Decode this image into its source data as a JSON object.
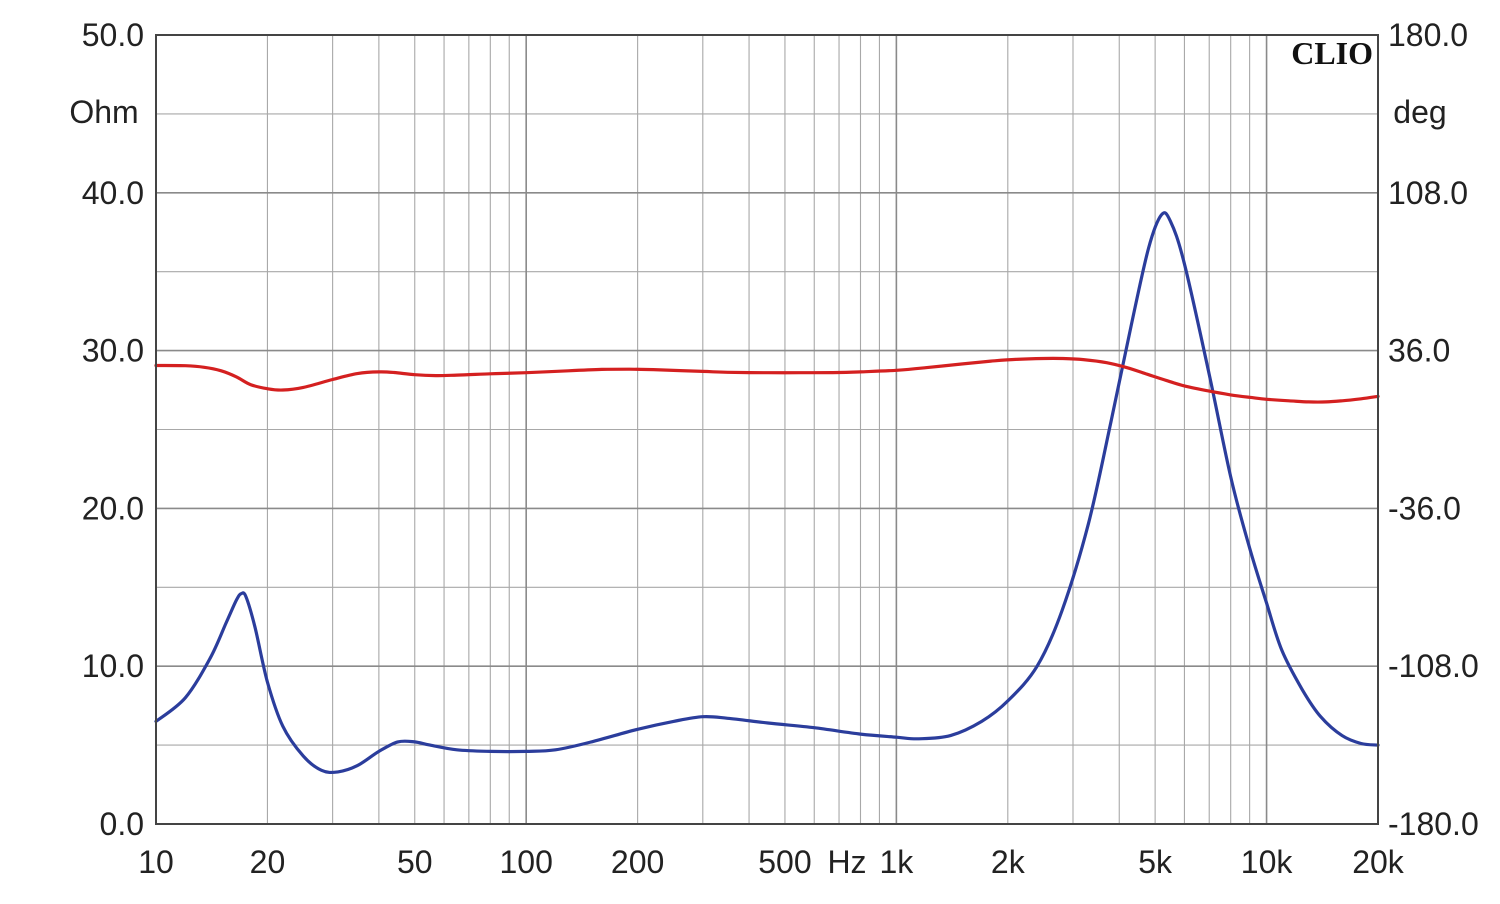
{
  "chart_data": {
    "type": "line",
    "brand": "CLIO",
    "x_scale": "log",
    "x_range": [
      10,
      20000
    ],
    "x_ticks": [
      {
        "value": 10,
        "label": "10"
      },
      {
        "value": 20,
        "label": "20"
      },
      {
        "value": 50,
        "label": "50"
      },
      {
        "value": 100,
        "label": "100"
      },
      {
        "value": 200,
        "label": "200"
      },
      {
        "value": 500,
        "label": "500"
      },
      {
        "value": 1000,
        "label": "1k"
      },
      {
        "value": 2000,
        "label": "2k"
      },
      {
        "value": 5000,
        "label": "5k"
      },
      {
        "value": 10000,
        "label": "10k"
      },
      {
        "value": 20000,
        "label": "20k"
      }
    ],
    "x_unit_label": "Hz",
    "y_left": {
      "unit": "Ohm",
      "range": [
        0,
        50
      ],
      "ticks": [
        "0.0",
        "10.0",
        "20.0",
        "30.0",
        "40.0",
        "50.0"
      ]
    },
    "y_right": {
      "unit": "deg",
      "range": [
        -180,
        180
      ],
      "ticks": [
        "-180.0",
        "-108.0",
        "-36.0",
        "36.0",
        "108.0",
        "180.0"
      ]
    },
    "grid": true,
    "series": [
      {
        "axis": "left",
        "color": "#2b3d9c",
        "points": [
          [
            10,
            6.5
          ],
          [
            12,
            8.0
          ],
          [
            14,
            10.5
          ],
          [
            15.5,
            12.8
          ],
          [
            16.5,
            14.2
          ],
          [
            17,
            14.6
          ],
          [
            17.5,
            14.4
          ],
          [
            18.5,
            12.5
          ],
          [
            20,
            9.0
          ],
          [
            22,
            6.2
          ],
          [
            25,
            4.3
          ],
          [
            28,
            3.4
          ],
          [
            31,
            3.3
          ],
          [
            35,
            3.7
          ],
          [
            40,
            4.6
          ],
          [
            45,
            5.2
          ],
          [
            50,
            5.2
          ],
          [
            55,
            5.0
          ],
          [
            65,
            4.7
          ],
          [
            80,
            4.6
          ],
          [
            100,
            4.6
          ],
          [
            120,
            4.7
          ],
          [
            150,
            5.2
          ],
          [
            200,
            6.0
          ],
          [
            250,
            6.5
          ],
          [
            300,
            6.8
          ],
          [
            350,
            6.7
          ],
          [
            450,
            6.4
          ],
          [
            600,
            6.1
          ],
          [
            800,
            5.7
          ],
          [
            1000,
            5.5
          ],
          [
            1150,
            5.4
          ],
          [
            1400,
            5.6
          ],
          [
            1700,
            6.5
          ],
          [
            2000,
            7.8
          ],
          [
            2400,
            10.0
          ],
          [
            2800,
            13.5
          ],
          [
            3300,
            19.0
          ],
          [
            3800,
            25.5
          ],
          [
            4300,
            31.5
          ],
          [
            4800,
            36.5
          ],
          [
            5200,
            38.6
          ],
          [
            5500,
            38.2
          ],
          [
            6000,
            35.5
          ],
          [
            7000,
            28.5
          ],
          [
            8000,
            22.0
          ],
          [
            9000,
            17.5
          ],
          [
            10000,
            14.0
          ],
          [
            11000,
            11.0
          ],
          [
            12500,
            8.5
          ],
          [
            14000,
            6.8
          ],
          [
            16000,
            5.6
          ],
          [
            18000,
            5.1
          ],
          [
            20000,
            5.0
          ]
        ]
      },
      {
        "axis": "right",
        "color": "#d42020",
        "points": [
          [
            10,
            29.2
          ],
          [
            12,
            29.1
          ],
          [
            13.5,
            28.4
          ],
          [
            15,
            26.8
          ],
          [
            16.5,
            24.0
          ],
          [
            18,
            20.5
          ],
          [
            20,
            18.6
          ],
          [
            22,
            18.0
          ],
          [
            25,
            19.2
          ],
          [
            30,
            22.8
          ],
          [
            35,
            25.5
          ],
          [
            40,
            26.3
          ],
          [
            44,
            26.0
          ],
          [
            50,
            25.0
          ],
          [
            57,
            24.6
          ],
          [
            65,
            24.8
          ],
          [
            80,
            25.4
          ],
          [
            100,
            25.9
          ],
          [
            130,
            26.8
          ],
          [
            160,
            27.4
          ],
          [
            190,
            27.5
          ],
          [
            230,
            27.2
          ],
          [
            300,
            26.5
          ],
          [
            350,
            26.1
          ],
          [
            450,
            25.9
          ],
          [
            550,
            25.9
          ],
          [
            700,
            26.0
          ],
          [
            800,
            26.3
          ],
          [
            1000,
            27.0
          ],
          [
            1200,
            28.2
          ],
          [
            1500,
            29.9
          ],
          [
            1800,
            31.2
          ],
          [
            2100,
            32.0
          ],
          [
            2500,
            32.4
          ],
          [
            2800,
            32.4
          ],
          [
            3200,
            31.9
          ],
          [
            3700,
            30.5
          ],
          [
            4200,
            28.2
          ],
          [
            4800,
            25.0
          ],
          [
            5400,
            22.2
          ],
          [
            6000,
            19.9
          ],
          [
            7000,
            17.5
          ],
          [
            8000,
            15.8
          ],
          [
            9000,
            14.7
          ],
          [
            10000,
            13.8
          ],
          [
            11500,
            13.1
          ],
          [
            13000,
            12.6
          ],
          [
            14500,
            12.6
          ],
          [
            16000,
            13.1
          ],
          [
            18000,
            14.0
          ],
          [
            20000,
            15.1
          ]
        ]
      }
    ]
  }
}
